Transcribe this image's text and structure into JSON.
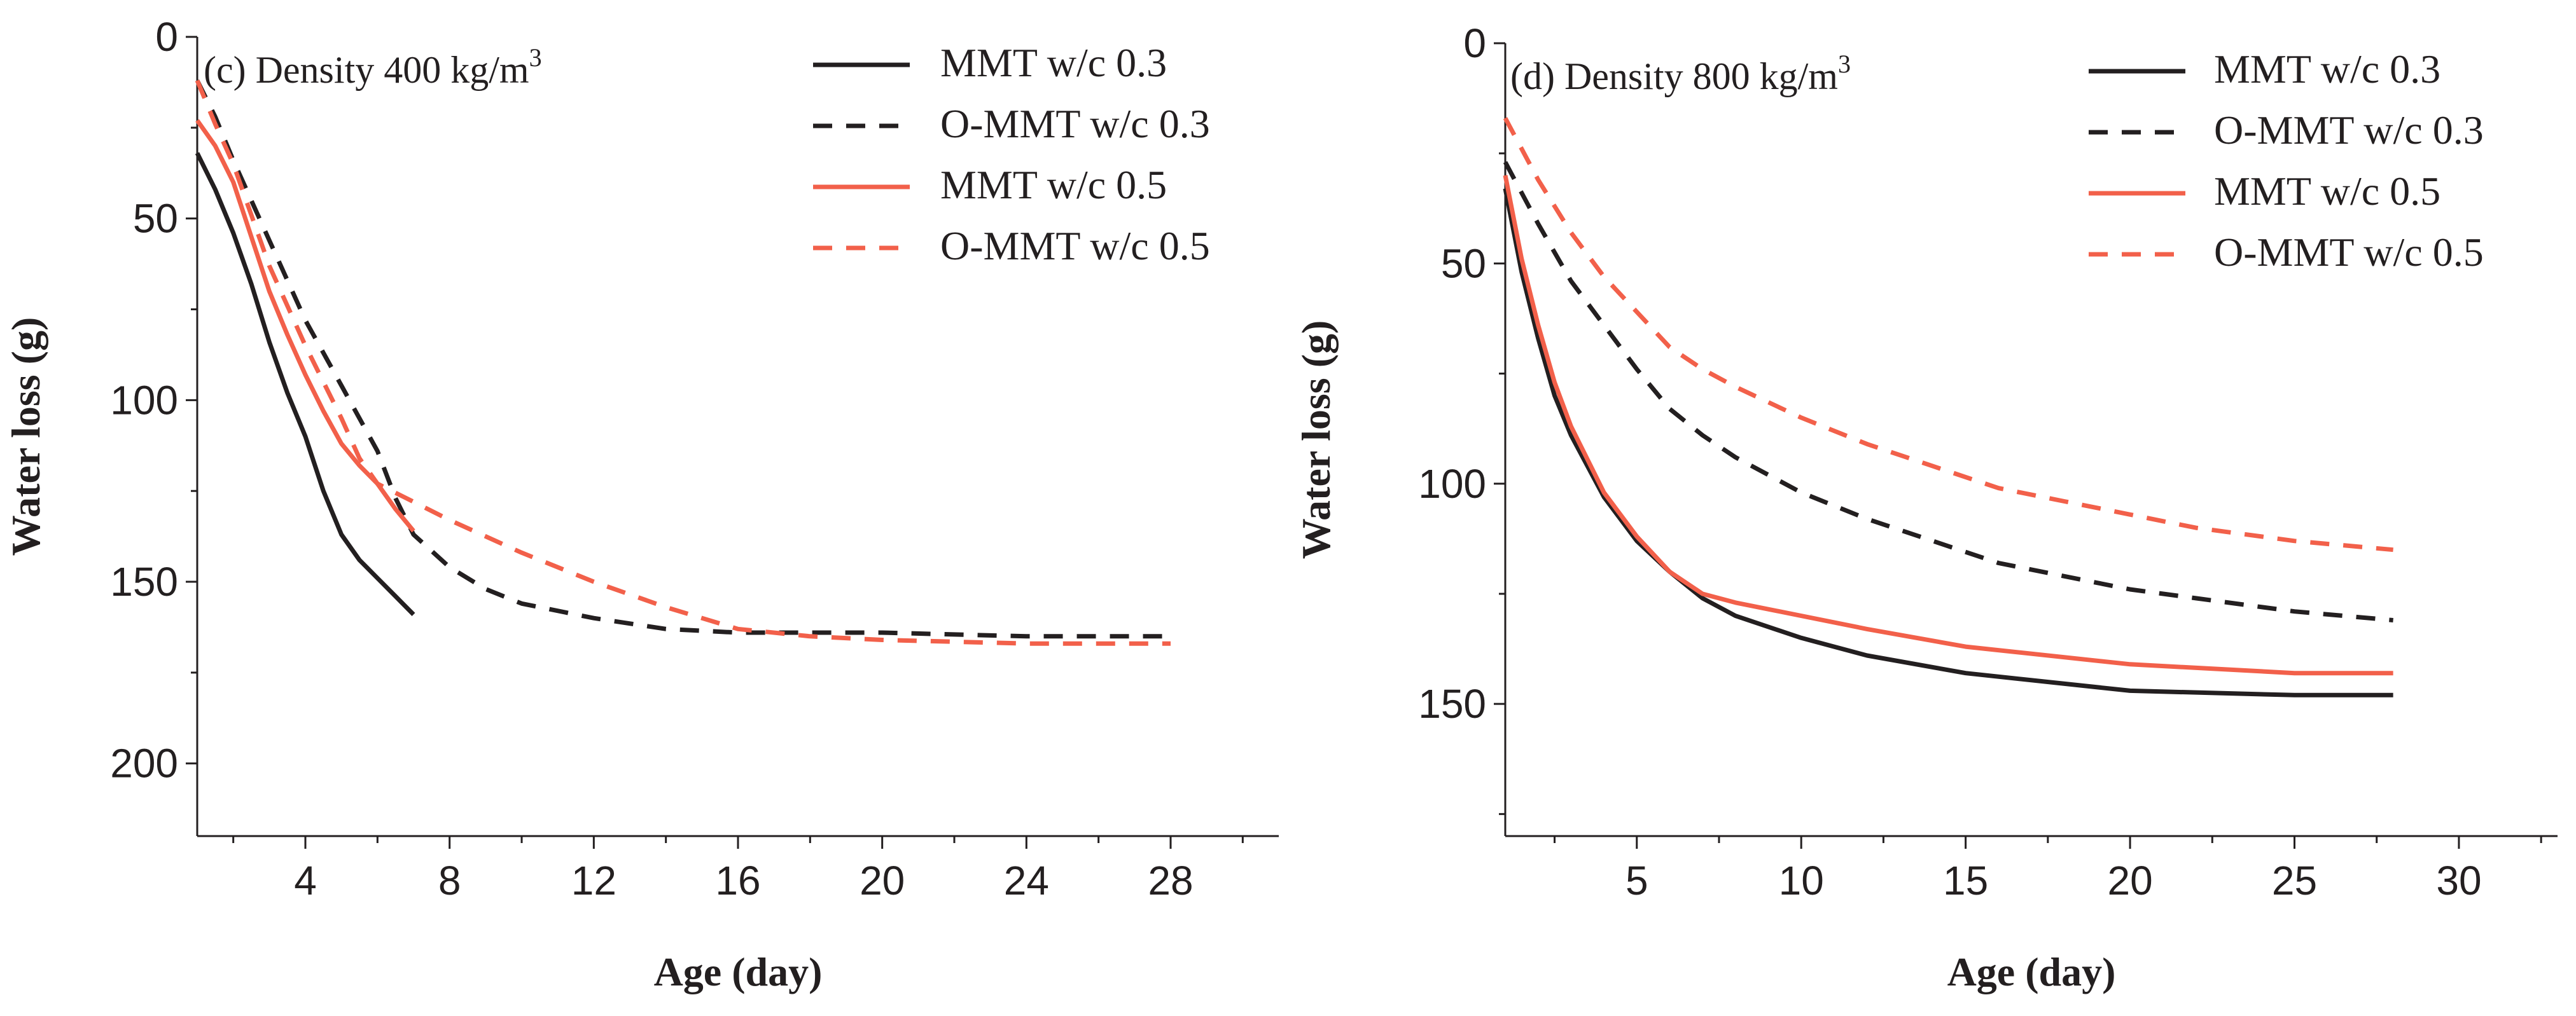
{
  "chart_data": [
    {
      "type": "line",
      "panel_label": "(c) Density 400 kg/m",
      "panel_label_sup": "3",
      "xlabel": "Age (day)",
      "ylabel": "Water loss (g)",
      "xlim": [
        1,
        31
      ],
      "ylim": [
        0,
        220
      ],
      "y_inverted": true,
      "xticks": [
        4,
        8,
        12,
        16,
        20,
        24,
        28
      ],
      "xticks_minor": [
        2,
        6,
        10,
        14,
        18,
        22,
        26,
        30
      ],
      "yticks": [
        0,
        50,
        100,
        150,
        200
      ],
      "yticks_minor": [
        25,
        75,
        125,
        175
      ],
      "legend_position": "top-right",
      "series": [
        {
          "name": "MMT w/c 0.3",
          "color": "#231f20",
          "dash": "solid",
          "x": [
            1,
            1.5,
            2,
            2.5,
            3,
            3.5,
            4,
            4.5,
            5,
            5.5,
            6,
            6.5,
            7
          ],
          "y": [
            32,
            42,
            54,
            68,
            84,
            98,
            110,
            125,
            137,
            144,
            149,
            154,
            159
          ]
        },
        {
          "name": "O-MMT w/c 0.3",
          "color": "#231f20",
          "dash": "dashed",
          "x": [
            1,
            1.5,
            2,
            3,
            4,
            5,
            6,
            6.5,
            7,
            8,
            9,
            10,
            12,
            14,
            16,
            20,
            24,
            28
          ],
          "y": [
            12,
            22,
            34,
            56,
            78,
            96,
            114,
            127,
            137,
            146,
            152,
            156,
            160,
            163,
            164,
            164,
            165,
            165
          ]
        },
        {
          "name": "MMT w/c 0.5",
          "color": "#f2604a",
          "dash": "solid",
          "x": [
            1,
            1.5,
            2,
            2.5,
            3,
            3.5,
            4,
            4.5,
            5,
            5.5,
            6,
            6.5,
            7
          ],
          "y": [
            23,
            30,
            40,
            55,
            70,
            82,
            93,
            103,
            112,
            118,
            123,
            130,
            136
          ]
        },
        {
          "name": "O-MMT w/c 0.5",
          "color": "#f2604a",
          "dash": "dashed",
          "x": [
            1,
            1.5,
            2,
            2.5,
            3,
            4,
            5,
            5.5,
            6,
            7,
            8,
            10,
            12,
            14,
            16,
            18,
            20,
            24,
            28
          ],
          "y": [
            12,
            24,
            35,
            49,
            63,
            85,
            105,
            116,
            123,
            128,
            133,
            142,
            150,
            157,
            163,
            165,
            166,
            167,
            167
          ]
        }
      ]
    },
    {
      "type": "line",
      "panel_label": "(d) Density 800 kg/m",
      "panel_label_sup": "3",
      "xlabel": "Age (day)",
      "ylabel": "Water loss (g)",
      "xlim": [
        1,
        33
      ],
      "ylim": [
        0,
        180
      ],
      "y_inverted": true,
      "xticks": [
        5,
        10,
        15,
        20,
        25,
        30
      ],
      "xticks_minor": [
        2.5,
        7.5,
        12.5,
        17.5,
        22.5,
        27.5,
        32.5
      ],
      "yticks": [
        0,
        50,
        100,
        150
      ],
      "yticks_minor": [
        25,
        75,
        125,
        175
      ],
      "legend_position": "top-right",
      "series": [
        {
          "name": "MMT w/c 0.3",
          "color": "#231f20",
          "dash": "solid",
          "x": [
            1,
            1.5,
            2,
            2.5,
            3,
            4,
            5,
            6,
            7,
            8,
            10,
            12,
            15,
            20,
            25,
            28
          ],
          "y": [
            33,
            52,
            67,
            80,
            89,
            103,
            113,
            120,
            126,
            130,
            135,
            139,
            143,
            147,
            148,
            148
          ]
        },
        {
          "name": "O-MMT w/c 0.3",
          "color": "#231f20",
          "dash": "dashed",
          "x": [
            1,
            2,
            3,
            4,
            5,
            6,
            7,
            8,
            10,
            12,
            14,
            16,
            18,
            20,
            22,
            25,
            28
          ],
          "y": [
            27,
            41,
            54,
            64,
            74,
            83,
            89,
            94,
            102,
            108,
            113,
            118,
            121,
            124,
            126,
            129,
            131
          ]
        },
        {
          "name": "MMT w/c 0.5",
          "color": "#f2604a",
          "dash": "solid",
          "x": [
            1,
            1.5,
            2,
            2.5,
            3,
            4,
            5,
            6,
            7,
            8,
            10,
            12,
            15,
            20,
            25,
            28
          ],
          "y": [
            30,
            49,
            64,
            77,
            87,
            102,
            112,
            120,
            125,
            127,
            130,
            133,
            137,
            141,
            143,
            143
          ]
        },
        {
          "name": "O-MMT w/c 0.5",
          "color": "#f2604a",
          "dash": "dashed",
          "x": [
            1,
            2,
            3,
            4,
            5,
            6,
            7,
            8,
            10,
            12,
            14,
            16,
            18,
            20,
            22,
            25,
            28
          ],
          "y": [
            17,
            31,
            43,
            53,
            61,
            69,
            74,
            78,
            85,
            91,
            96,
            101,
            104,
            107,
            110,
            113,
            115
          ]
        }
      ]
    }
  ]
}
